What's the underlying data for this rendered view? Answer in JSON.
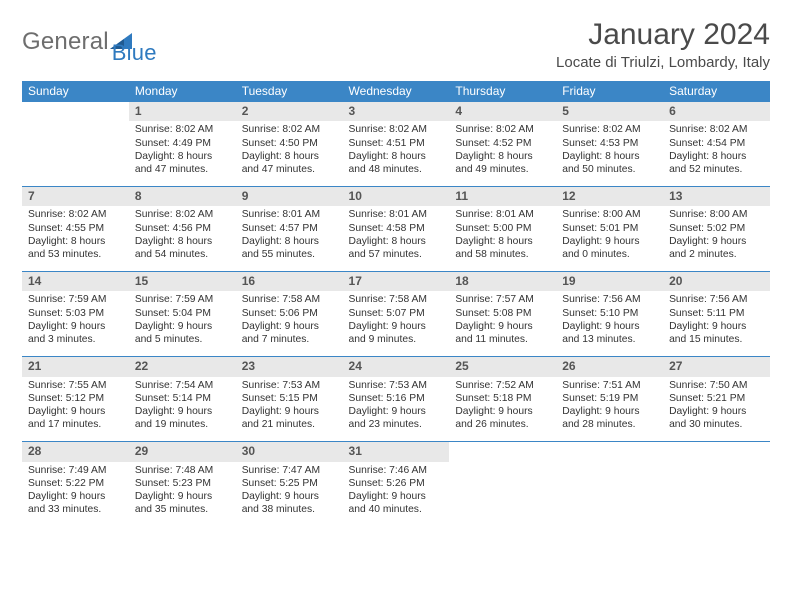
{
  "colors": {
    "header_bg": "#3b86c6",
    "daynum_bg": "#e8e8e8",
    "divider": "#3b86c6",
    "text": "#333333",
    "logo_gray": "#6e6e6e",
    "logo_blue": "#2f7abf",
    "title": "#4a4a4a"
  },
  "logo": {
    "part1": "General",
    "part2": "Blue"
  },
  "title": "January 2024",
  "location": "Locate di Triulzi, Lombardy, Italy",
  "weekdays": [
    "Sunday",
    "Monday",
    "Tuesday",
    "Wednesday",
    "Thursday",
    "Friday",
    "Saturday"
  ],
  "weeks": [
    {
      "nums": [
        "",
        "1",
        "2",
        "3",
        "4",
        "5",
        "6"
      ],
      "cells": [
        "",
        "Sunrise: 8:02 AM\nSunset: 4:49 PM\nDaylight: 8 hours and 47 minutes.",
        "Sunrise: 8:02 AM\nSunset: 4:50 PM\nDaylight: 8 hours and 47 minutes.",
        "Sunrise: 8:02 AM\nSunset: 4:51 PM\nDaylight: 8 hours and 48 minutes.",
        "Sunrise: 8:02 AM\nSunset: 4:52 PM\nDaylight: 8 hours and 49 minutes.",
        "Sunrise: 8:02 AM\nSunset: 4:53 PM\nDaylight: 8 hours and 50 minutes.",
        "Sunrise: 8:02 AM\nSunset: 4:54 PM\nDaylight: 8 hours and 52 minutes."
      ]
    },
    {
      "nums": [
        "7",
        "8",
        "9",
        "10",
        "11",
        "12",
        "13"
      ],
      "cells": [
        "Sunrise: 8:02 AM\nSunset: 4:55 PM\nDaylight: 8 hours and 53 minutes.",
        "Sunrise: 8:02 AM\nSunset: 4:56 PM\nDaylight: 8 hours and 54 minutes.",
        "Sunrise: 8:01 AM\nSunset: 4:57 PM\nDaylight: 8 hours and 55 minutes.",
        "Sunrise: 8:01 AM\nSunset: 4:58 PM\nDaylight: 8 hours and 57 minutes.",
        "Sunrise: 8:01 AM\nSunset: 5:00 PM\nDaylight: 8 hours and 58 minutes.",
        "Sunrise: 8:00 AM\nSunset: 5:01 PM\nDaylight: 9 hours and 0 minutes.",
        "Sunrise: 8:00 AM\nSunset: 5:02 PM\nDaylight: 9 hours and 2 minutes."
      ]
    },
    {
      "nums": [
        "14",
        "15",
        "16",
        "17",
        "18",
        "19",
        "20"
      ],
      "cells": [
        "Sunrise: 7:59 AM\nSunset: 5:03 PM\nDaylight: 9 hours and 3 minutes.",
        "Sunrise: 7:59 AM\nSunset: 5:04 PM\nDaylight: 9 hours and 5 minutes.",
        "Sunrise: 7:58 AM\nSunset: 5:06 PM\nDaylight: 9 hours and 7 minutes.",
        "Sunrise: 7:58 AM\nSunset: 5:07 PM\nDaylight: 9 hours and 9 minutes.",
        "Sunrise: 7:57 AM\nSunset: 5:08 PM\nDaylight: 9 hours and 11 minutes.",
        "Sunrise: 7:56 AM\nSunset: 5:10 PM\nDaylight: 9 hours and 13 minutes.",
        "Sunrise: 7:56 AM\nSunset: 5:11 PM\nDaylight: 9 hours and 15 minutes."
      ]
    },
    {
      "nums": [
        "21",
        "22",
        "23",
        "24",
        "25",
        "26",
        "27"
      ],
      "cells": [
        "Sunrise: 7:55 AM\nSunset: 5:12 PM\nDaylight: 9 hours and 17 minutes.",
        "Sunrise: 7:54 AM\nSunset: 5:14 PM\nDaylight: 9 hours and 19 minutes.",
        "Sunrise: 7:53 AM\nSunset: 5:15 PM\nDaylight: 9 hours and 21 minutes.",
        "Sunrise: 7:53 AM\nSunset: 5:16 PM\nDaylight: 9 hours and 23 minutes.",
        "Sunrise: 7:52 AM\nSunset: 5:18 PM\nDaylight: 9 hours and 26 minutes.",
        "Sunrise: 7:51 AM\nSunset: 5:19 PM\nDaylight: 9 hours and 28 minutes.",
        "Sunrise: 7:50 AM\nSunset: 5:21 PM\nDaylight: 9 hours and 30 minutes."
      ]
    },
    {
      "nums": [
        "28",
        "29",
        "30",
        "31",
        "",
        "",
        ""
      ],
      "cells": [
        "Sunrise: 7:49 AM\nSunset: 5:22 PM\nDaylight: 9 hours and 33 minutes.",
        "Sunrise: 7:48 AM\nSunset: 5:23 PM\nDaylight: 9 hours and 35 minutes.",
        "Sunrise: 7:47 AM\nSunset: 5:25 PM\nDaylight: 9 hours and 38 minutes.",
        "Sunrise: 7:46 AM\nSunset: 5:26 PM\nDaylight: 9 hours and 40 minutes.",
        "",
        "",
        ""
      ]
    }
  ]
}
